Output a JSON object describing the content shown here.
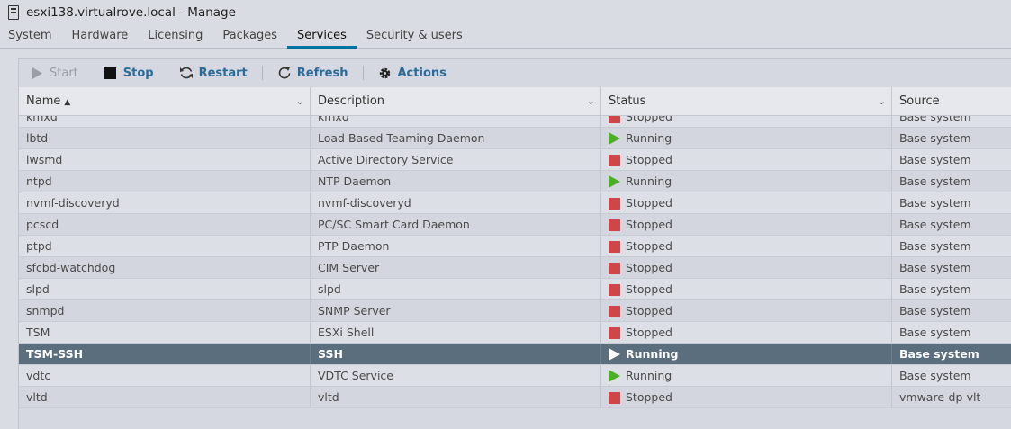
{
  "window": {
    "title": "esxi138.virtualrove.local - Manage"
  },
  "tabs": [
    {
      "label": "System",
      "active": false
    },
    {
      "label": "Hardware",
      "active": false
    },
    {
      "label": "Licensing",
      "active": false
    },
    {
      "label": "Packages",
      "active": false
    },
    {
      "label": "Services",
      "active": true
    },
    {
      "label": "Security & users",
      "active": false
    }
  ],
  "toolbar": {
    "start_label": "Start",
    "stop_label": "Stop",
    "restart_label": "Restart",
    "refresh_label": "Refresh",
    "actions_label": "Actions"
  },
  "table": {
    "columns": [
      {
        "label": "Name",
        "sort": "ascending"
      },
      {
        "label": "Description"
      },
      {
        "label": "Status"
      },
      {
        "label": "Source"
      }
    ],
    "rows": [
      {
        "name": "kmxd",
        "description": "kmxd",
        "status": "Stopped",
        "source": "Base system"
      },
      {
        "name": "lbtd",
        "description": "Load-Based Teaming Daemon",
        "status": "Running",
        "source": "Base system"
      },
      {
        "name": "lwsmd",
        "description": "Active Directory Service",
        "status": "Stopped",
        "source": "Base system"
      },
      {
        "name": "ntpd",
        "description": "NTP Daemon",
        "status": "Running",
        "source": "Base system"
      },
      {
        "name": "nvmf-discoveryd",
        "description": "nvmf-discoveryd",
        "status": "Stopped",
        "source": "Base system"
      },
      {
        "name": "pcscd",
        "description": "PC/SC Smart Card Daemon",
        "status": "Stopped",
        "source": "Base system"
      },
      {
        "name": "ptpd",
        "description": "PTP Daemon",
        "status": "Stopped",
        "source": "Base system"
      },
      {
        "name": "sfcbd-watchdog",
        "description": "CIM Server",
        "status": "Stopped",
        "source": "Base system"
      },
      {
        "name": "slpd",
        "description": "slpd",
        "status": "Stopped",
        "source": "Base system"
      },
      {
        "name": "snmpd",
        "description": "SNMP Server",
        "status": "Stopped",
        "source": "Base system"
      },
      {
        "name": "TSM",
        "description": "ESXi Shell",
        "status": "Stopped",
        "source": "Base system"
      },
      {
        "name": "TSM-SSH",
        "description": "SSH",
        "status": "Running",
        "source": "Base system",
        "selected": true
      },
      {
        "name": "vdtc",
        "description": "VDTC Service",
        "status": "Running",
        "source": "Base system"
      },
      {
        "name": "vltd",
        "description": "vltd",
        "status": "Stopped",
        "source": "vmware-dp-vlt"
      }
    ]
  },
  "colors": {
    "accent": "#0072a3",
    "running": "#4caf28",
    "stopped": "#d04646",
    "selected_row": "#5a6e7e"
  }
}
